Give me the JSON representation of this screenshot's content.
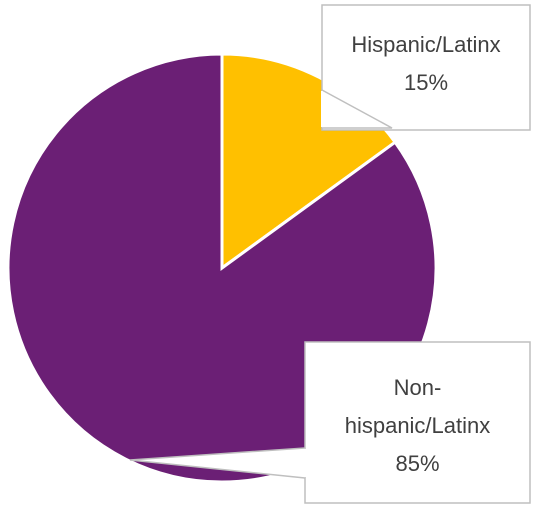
{
  "chart_data": {
    "type": "pie",
    "categories": [
      "Hispanic/Latinx",
      "Non-hispanic/Latinx"
    ],
    "values": [
      15,
      85
    ],
    "unit": "%",
    "colors": [
      "#FFC000",
      "#6B1F75"
    ],
    "data_labels": [
      {
        "lines": [
          "Hispanic/Latinx",
          "15%"
        ]
      },
      {
        "lines": [
          "Non-",
          "hispanic/Latinx",
          "85%"
        ]
      }
    ],
    "title": "",
    "legend": "none",
    "start_angle_deg": 0,
    "direction": "clockwise"
  }
}
